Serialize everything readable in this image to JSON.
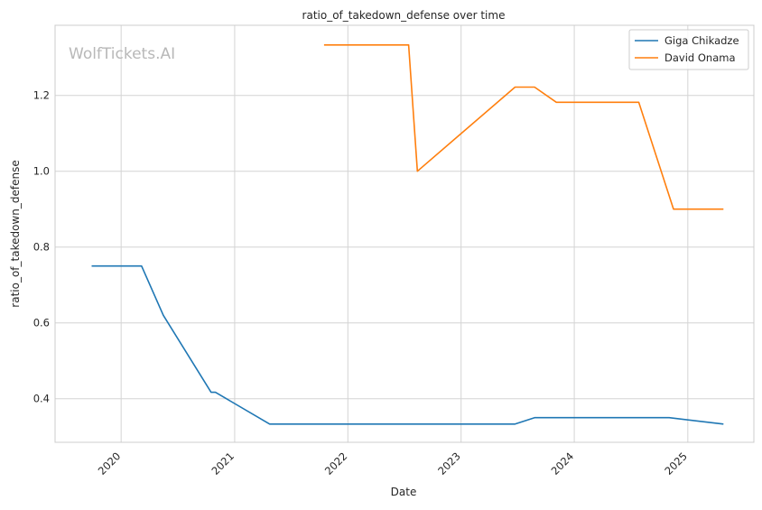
{
  "chart_data": {
    "type": "line",
    "title": "ratio_of_takedown_defense over time",
    "xlabel": "Date",
    "ylabel": "ratio_of_takedown_defense",
    "watermark": "WolfTickets.AI",
    "xlim": [
      "2019-06-02",
      "2025-08-02"
    ],
    "ylim": [
      0.285,
      1.385
    ],
    "x_ticks": [
      {
        "date": "2020-01-01",
        "label": "2020"
      },
      {
        "date": "2021-01-01",
        "label": "2021"
      },
      {
        "date": "2022-01-01",
        "label": "2022"
      },
      {
        "date": "2023-01-01",
        "label": "2023"
      },
      {
        "date": "2024-01-01",
        "label": "2024"
      },
      {
        "date": "2025-01-01",
        "label": "2025"
      }
    ],
    "y_ticks": [
      {
        "value": 0.4,
        "label": "0.4"
      },
      {
        "value": 0.6,
        "label": "0.6"
      },
      {
        "value": 0.8,
        "label": "0.8"
      },
      {
        "value": 1.0,
        "label": "1.0"
      },
      {
        "value": 1.2,
        "label": "1.2"
      }
    ],
    "grid": true,
    "legend_position": "top-right",
    "series": [
      {
        "name": "Giga Chikadze",
        "color": "#1f77b4",
        "x": [
          "2019-09-28",
          "2020-03-07",
          "2020-05-16",
          "2020-10-17",
          "2020-10-31",
          "2021-04-24",
          "2023-06-24",
          "2023-08-26",
          "2024-11-02",
          "2025-04-26"
        ],
        "y": [
          0.75,
          0.75,
          0.62,
          0.417,
          0.417,
          0.333,
          0.333,
          0.35,
          0.35,
          0.333
        ]
      },
      {
        "name": "David Onama",
        "color": "#ff7f0e",
        "x": [
          "2021-10-16",
          "2022-07-16",
          "2022-08-13",
          "2023-06-24",
          "2023-08-26",
          "2023-11-04",
          "2024-07-27",
          "2024-11-16",
          "2025-04-26"
        ],
        "y": [
          1.333,
          1.333,
          1.0,
          1.222,
          1.222,
          1.182,
          1.182,
          0.9,
          0.9
        ]
      }
    ]
  }
}
